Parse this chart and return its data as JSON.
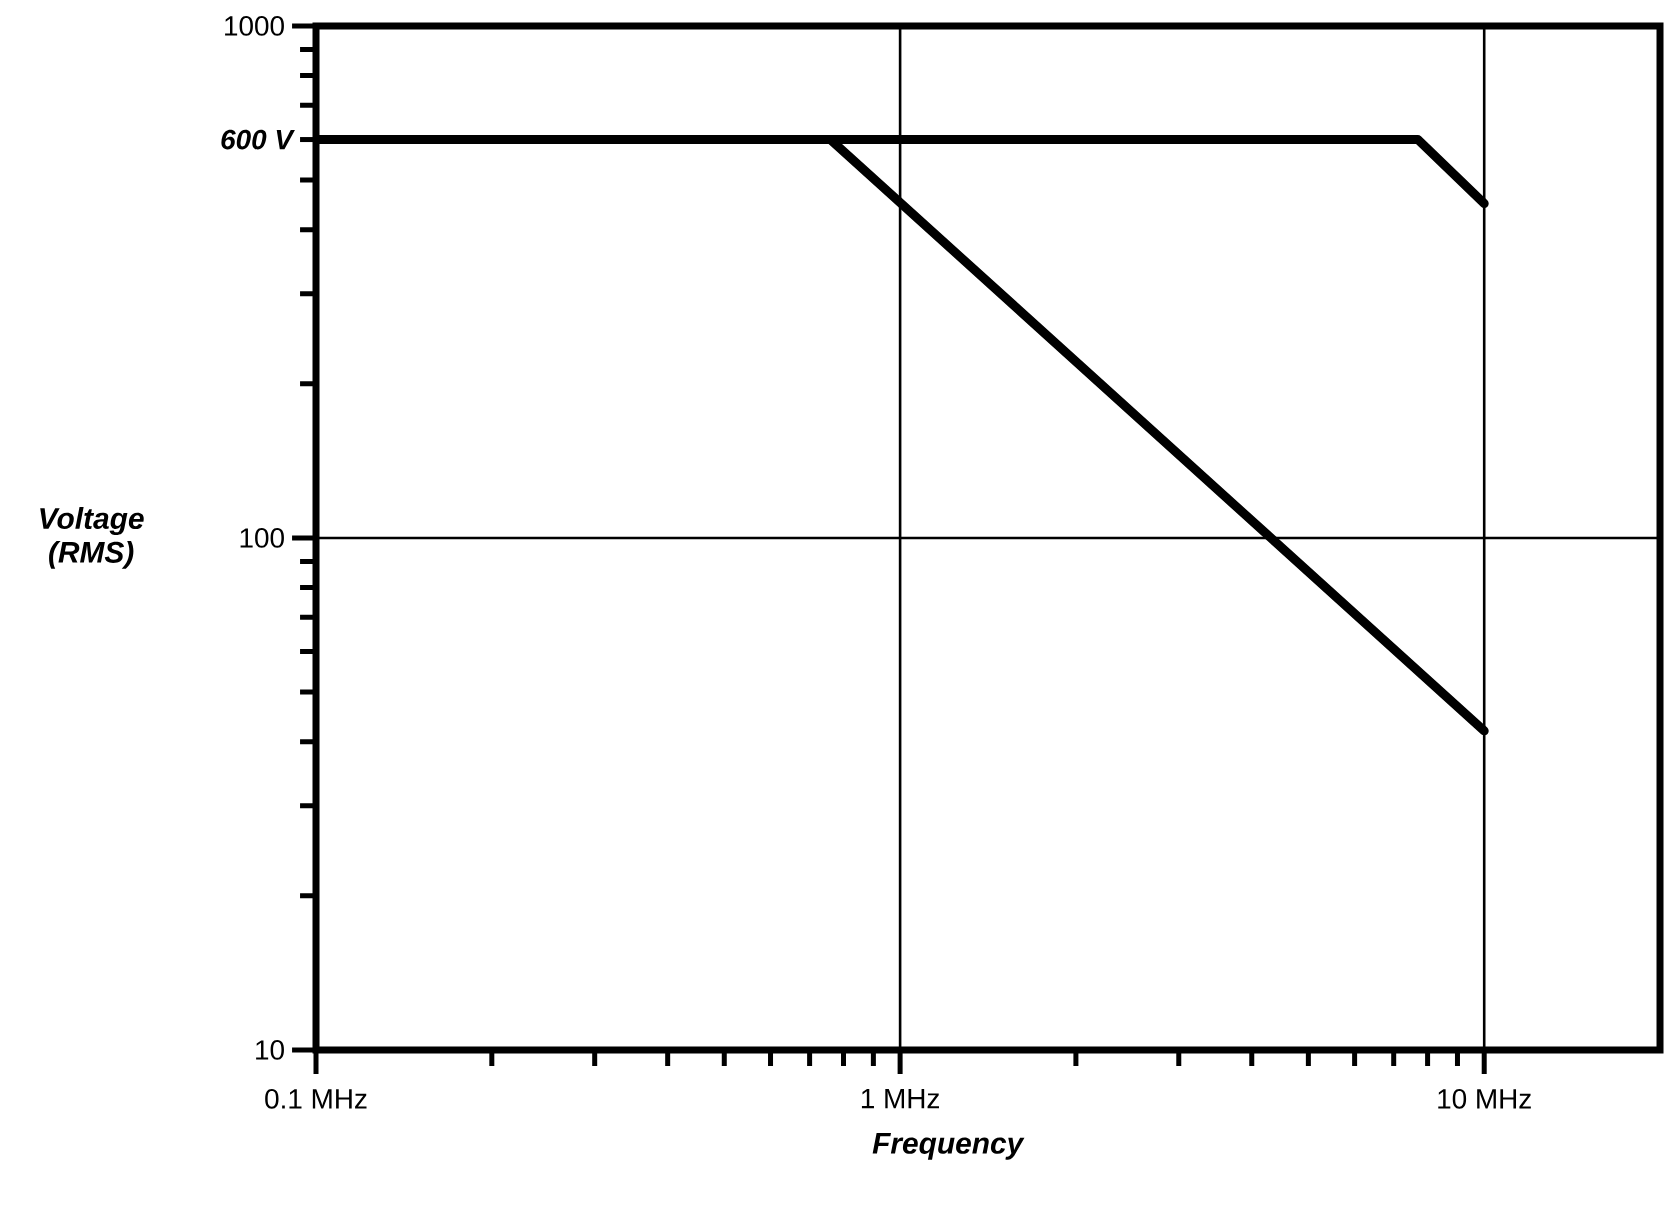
{
  "chart_data": {
    "type": "line",
    "xlabel": "Frequency",
    "ylabel": "Voltage (RMS)",
    "log": "xy",
    "xlim": [
      0.1,
      20
    ],
    "ylim": [
      10,
      1000
    ],
    "xticks": [
      {
        "value": 0.1,
        "label": "0.1 MHz"
      },
      {
        "value": 0.2,
        "label": null
      },
      {
        "value": 0.3,
        "label": null
      },
      {
        "value": 0.4,
        "label": null
      },
      {
        "value": 0.5,
        "label": null
      },
      {
        "value": 0.6,
        "label": null
      },
      {
        "value": 0.7,
        "label": null
      },
      {
        "value": 0.8,
        "label": null
      },
      {
        "value": 0.9,
        "label": null
      },
      {
        "value": 1,
        "label": "1 MHz"
      },
      {
        "value": 2,
        "label": null
      },
      {
        "value": 3,
        "label": null
      },
      {
        "value": 4,
        "label": null
      },
      {
        "value": 5,
        "label": null
      },
      {
        "value": 6,
        "label": null
      },
      {
        "value": 7,
        "label": null
      },
      {
        "value": 8,
        "label": null
      },
      {
        "value": 9,
        "label": null
      },
      {
        "value": 10,
        "label": "10 MHz"
      }
    ],
    "yticks": [
      10,
      {
        "value": 20,
        "label": null
      },
      {
        "value": 30,
        "label": null
      },
      {
        "value": 40,
        "label": null
      },
      {
        "value": 50,
        "label": null
      },
      {
        "value": 60,
        "label": null
      },
      {
        "value": 70,
        "label": null
      },
      {
        "value": 80,
        "label": null
      },
      {
        "value": 90,
        "label": null
      },
      100,
      {
        "value": 200,
        "label": null
      },
      {
        "value": 300,
        "label": null
      },
      {
        "value": 400,
        "label": null
      },
      {
        "value": 500,
        "label": null
      },
      {
        "value": 600,
        "label": "600 V"
      },
      {
        "value": 700,
        "label": null
      },
      {
        "value": 800,
        "label": null
      },
      {
        "value": 900,
        "label": null
      },
      1000
    ],
    "grid": true,
    "marker": "none",
    "line_style": "solid",
    "series": [
      {
        "color": "#000000",
        "x": [
          0.1,
          7.7,
          10
        ],
        "values": [
          600,
          600,
          450
        ]
      },
      {
        "color": "#000000",
        "x": [
          0.1,
          0.76,
          10
        ],
        "values": [
          600,
          600,
          42
        ]
      }
    ]
  }
}
